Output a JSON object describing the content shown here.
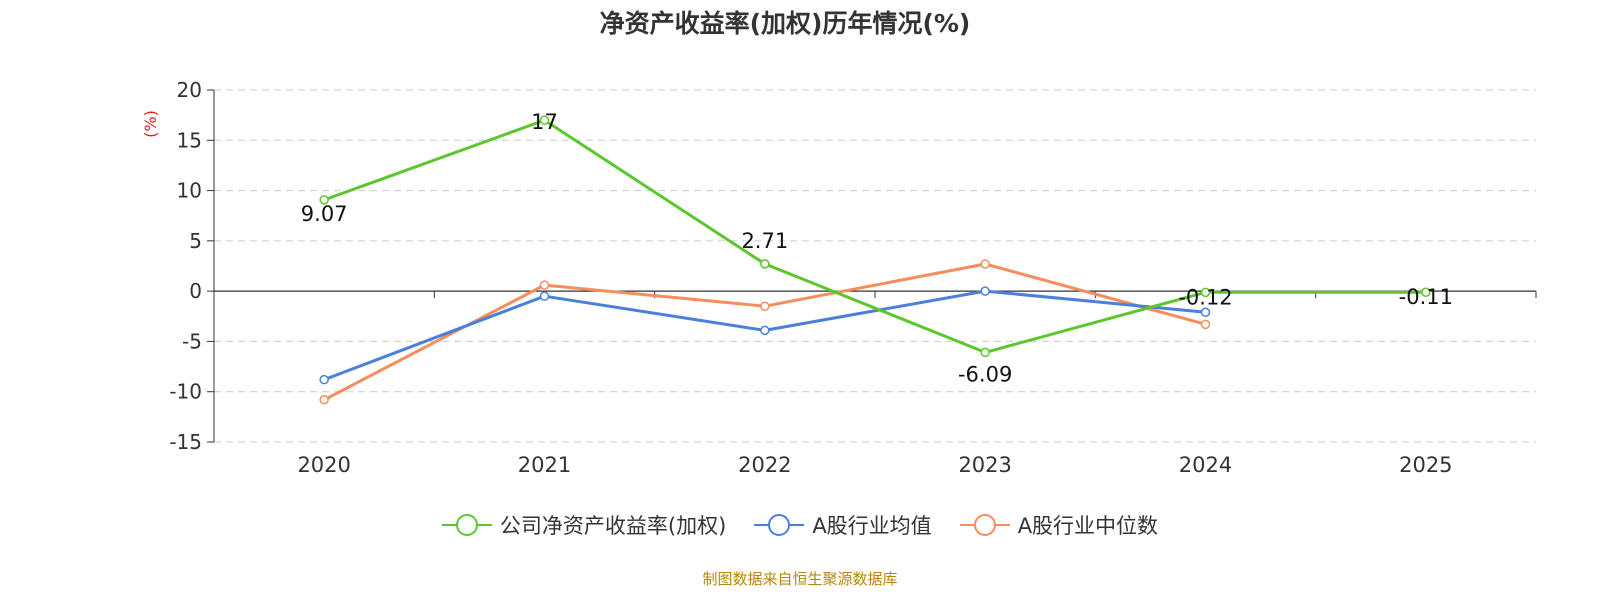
{
  "title": "净资产收益率(加权)历年情况(%)",
  "source": "制图数据来自恒生聚源数据库",
  "chart_data": {
    "type": "line",
    "title": "净资产收益率(加权)历年情况(%)",
    "ylabel": "(%)",
    "xlabel": "",
    "categories": [
      "2020",
      "2021",
      "2022",
      "2023",
      "2024",
      "2025"
    ],
    "ylim": [
      -15,
      20
    ],
    "yticks": [
      20,
      15,
      10,
      5,
      0,
      -5,
      -10,
      -15
    ],
    "grid": true,
    "legend_position": "bottom",
    "series": [
      {
        "name": "公司净资产收益率(加权)",
        "color": "#5cc72c",
        "values": [
          9.07,
          17,
          2.71,
          -6.09,
          -0.12,
          -0.11
        ],
        "labels": [
          "9.07",
          "17",
          "2.71",
          "-6.09",
          "-0.12",
          "-0.11"
        ]
      },
      {
        "name": "A股行业均值",
        "color": "#4a7fdb",
        "values": [
          -8.8,
          -0.5,
          -3.9,
          0.0,
          -2.1,
          null
        ]
      },
      {
        "name": "A股行业中位数",
        "color": "#f58d5c",
        "values": [
          -10.8,
          0.6,
          -1.5,
          2.7,
          -3.3,
          null
        ]
      }
    ]
  }
}
